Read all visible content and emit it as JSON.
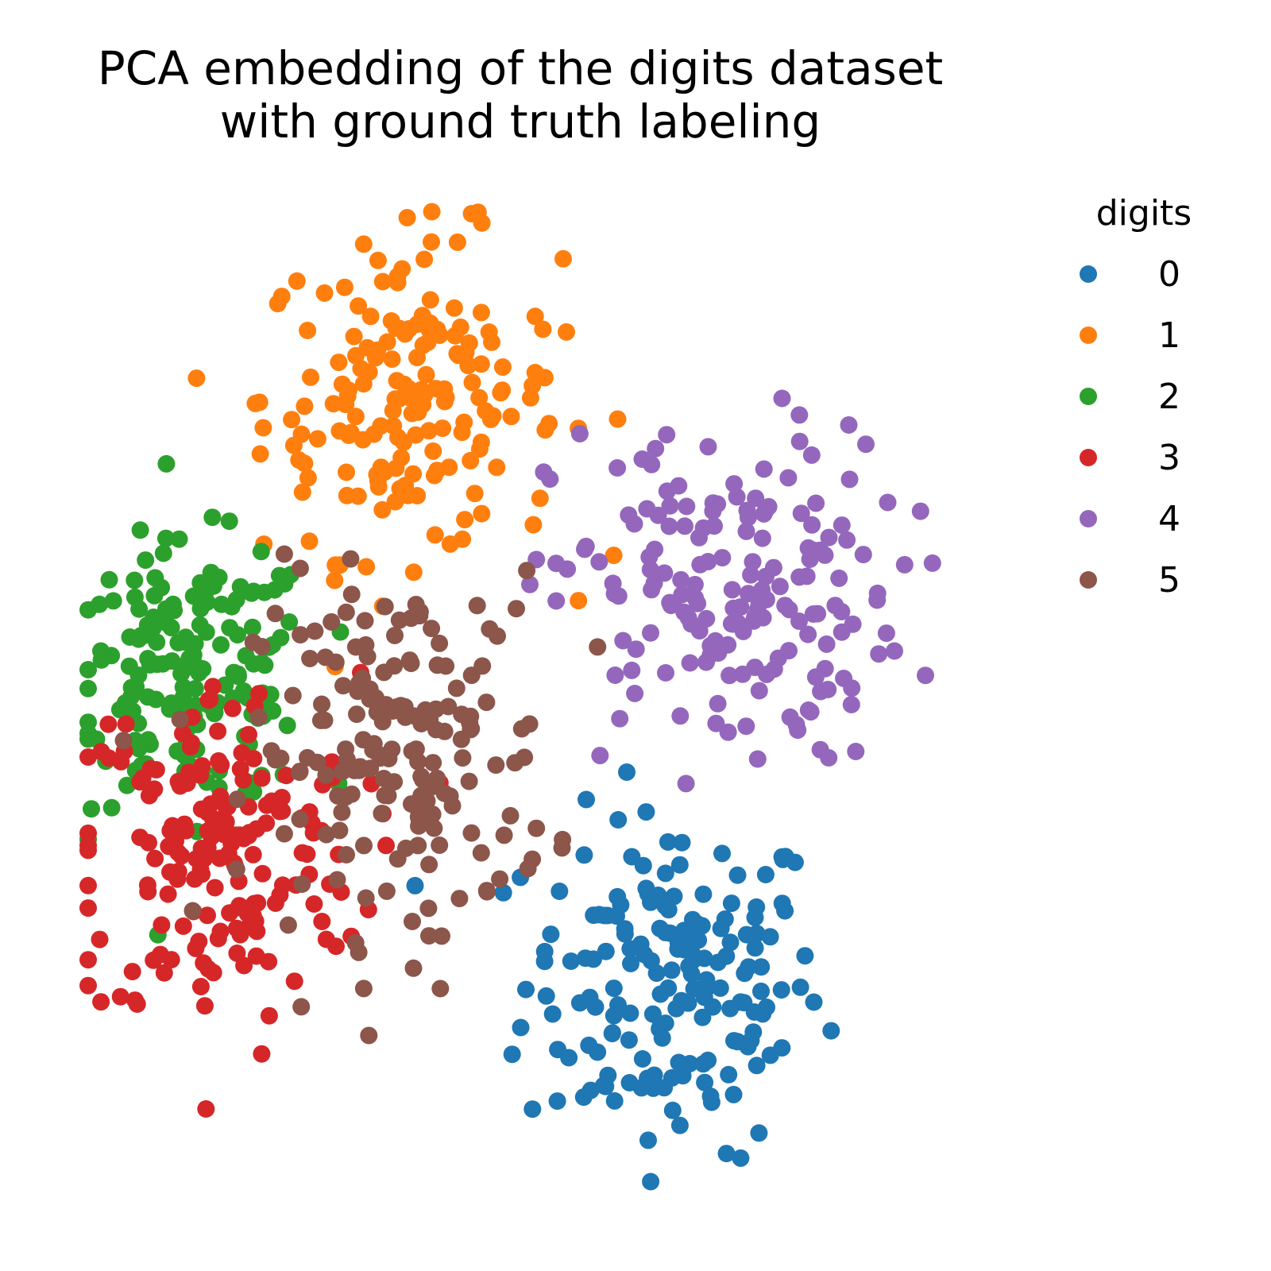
{
  "chart_data": {
    "type": "scatter",
    "title": "PCA embedding of the digits dataset\nwith ground truth labeling",
    "title_lines": [
      "PCA embedding of the digits dataset",
      "with ground truth labeling"
    ],
    "xlabel": "",
    "ylabel": "",
    "axes_visible": false,
    "grid": false,
    "legend": {
      "title": "digits",
      "placement": "right"
    },
    "series": [
      {
        "name": "0",
        "color": "#1f77b4",
        "center": [
          0.68,
          0.21
        ],
        "spread": [
          0.085,
          0.085
        ],
        "count": 178
      },
      {
        "name": "1",
        "color": "#ff7f0e",
        "center": [
          0.38,
          0.8
        ],
        "spread": [
          0.085,
          0.08
        ],
        "count": 182
      },
      {
        "name": "2",
        "color": "#2ca02c",
        "center": [
          0.13,
          0.52
        ],
        "spread": [
          0.07,
          0.065
        ],
        "count": 177
      },
      {
        "name": "3",
        "color": "#d62728",
        "center": [
          0.16,
          0.34
        ],
        "spread": [
          0.08,
          0.09
        ],
        "count": 183
      },
      {
        "name": "4",
        "color": "#9467bd",
        "center": [
          0.74,
          0.6
        ],
        "spread": [
          0.1,
          0.085
        ],
        "count": 181
      },
      {
        "name": "5",
        "color": "#8c564b",
        "center": [
          0.37,
          0.44
        ],
        "spread": [
          0.085,
          0.09
        ],
        "count": 182
      }
    ],
    "xlim": [
      0,
      1
    ],
    "ylim": [
      0,
      1
    ]
  }
}
